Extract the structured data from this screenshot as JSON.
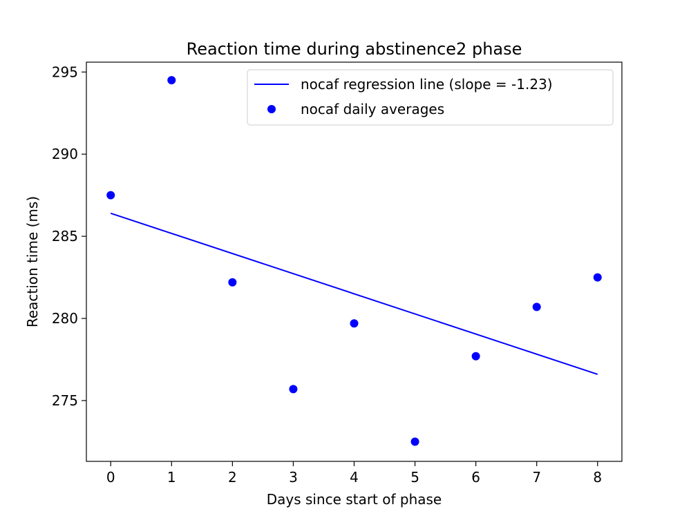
{
  "chart_data": {
    "type": "scatter",
    "title": "Reaction time during abstinence2 phase",
    "xlabel": "Days since start of phase",
    "ylabel": "Reaction time (ms)",
    "xlim": [
      -0.4,
      8.4
    ],
    "ylim": [
      271.3,
      295.6
    ],
    "xticks": [
      0,
      1,
      2,
      3,
      4,
      5,
      6,
      7,
      8
    ],
    "yticks": [
      275,
      280,
      285,
      290,
      295
    ],
    "grid": false,
    "legend_position": "upper right",
    "series": [
      {
        "name": "nocaf daily averages",
        "kind": "scatter",
        "color": "#0000ff",
        "x": [
          0,
          1,
          2,
          3,
          4,
          5,
          6,
          7,
          8
        ],
        "y": [
          287.5,
          294.5,
          282.2,
          275.7,
          279.7,
          272.5,
          277.7,
          280.7,
          282.5
        ]
      },
      {
        "name": "nocaf regression line (slope = -1.23)",
        "kind": "line",
        "color": "#0000ff",
        "x": [
          0,
          8
        ],
        "y": [
          286.4,
          276.6
        ]
      }
    ],
    "legend": [
      {
        "label": "nocaf regression line (slope = -1.23)",
        "marker": "line",
        "color": "#0000ff"
      },
      {
        "label": "nocaf daily averages",
        "marker": "dot",
        "color": "#0000ff"
      }
    ]
  }
}
